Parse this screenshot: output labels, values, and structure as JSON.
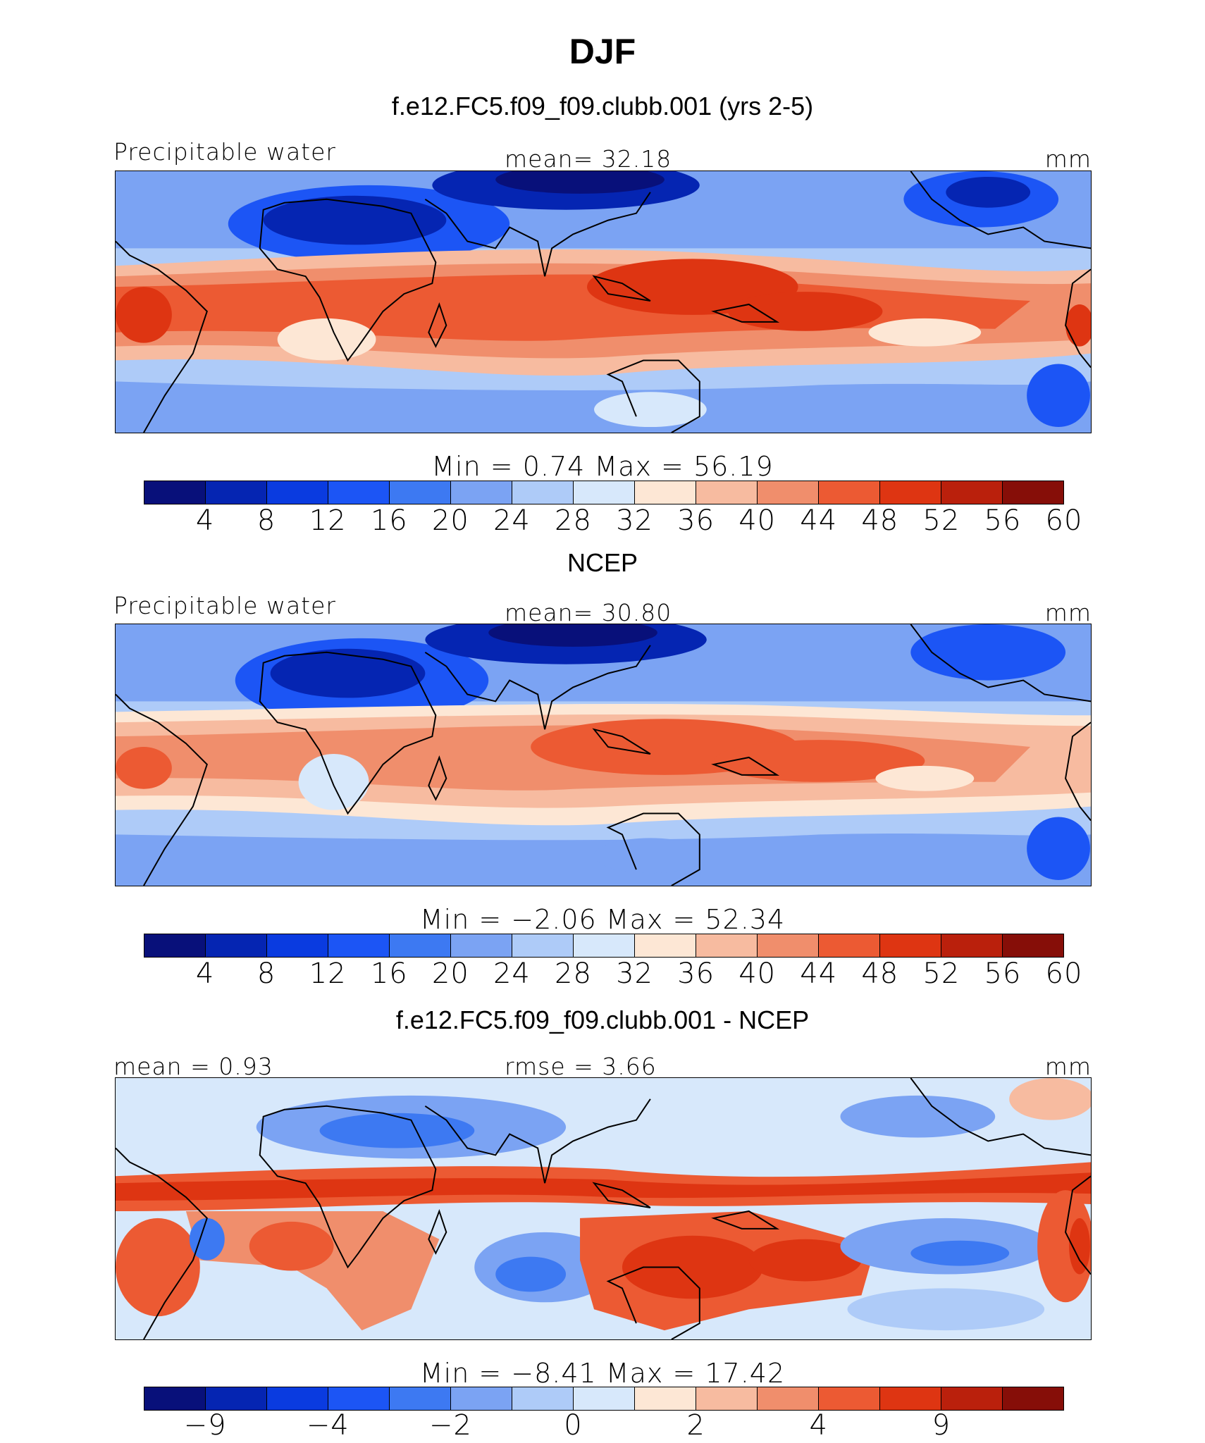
{
  "title": "DJF",
  "colors": {
    "abs": [
      "#08107a",
      "#0525b2",
      "#0a3be0",
      "#1c55f5",
      "#3d79f2",
      "#7ba3f3",
      "#aecbf8",
      "#d7e8fb",
      "#fde7d5",
      "#f7bba0",
      "#f08e6c",
      "#ec5a33",
      "#de3512",
      "#ba200c",
      "#860e08"
    ],
    "diff": [
      "#08107a",
      "#0525b2",
      "#0a3be0",
      "#1c55f5",
      "#3d79f2",
      "#7ba3f3",
      "#aecbf8",
      "#d7e8fb",
      "#fde7d5",
      "#f7bba0",
      "#f08e6c",
      "#ec5a33",
      "#de3512",
      "#ba200c",
      "#860e08"
    ]
  },
  "panels": [
    {
      "heading": "f.e12.FC5.f09_f09.clubb.001 (yrs 2-5)",
      "left_label": "Precipitable water",
      "center_label": "mean=   32.18",
      "units": "mm",
      "minmax": "Min  =      0.74  Max  =     56.19",
      "ticks": [
        "4",
        "8",
        "12",
        "16",
        "20",
        "24",
        "28",
        "32",
        "36",
        "40",
        "44",
        "48",
        "52",
        "56",
        "60"
      ],
      "palette": "abs"
    },
    {
      "heading": "NCEP",
      "left_label": "Precipitable water",
      "center_label": "mean=   30.80",
      "units": "mm",
      "minmax": "Min  =   −2.06  Max  =    52.34",
      "ticks": [
        "4",
        "8",
        "12",
        "16",
        "20",
        "24",
        "28",
        "32",
        "36",
        "40",
        "44",
        "48",
        "52",
        "56",
        "60"
      ],
      "palette": "abs"
    },
    {
      "heading": "f.e12.FC5.f09_f09.clubb.001 - NCEP",
      "left_label": "mean  =    0.93",
      "center_label": "rmse  =    3.66",
      "units": "mm",
      "minmax": "Min  =   −8.41  Max  =    17.42",
      "ticks": [
        "−9",
        "−4",
        "−2",
        "0",
        "2",
        "4",
        "9"
      ],
      "palette": "diff"
    }
  ]
}
